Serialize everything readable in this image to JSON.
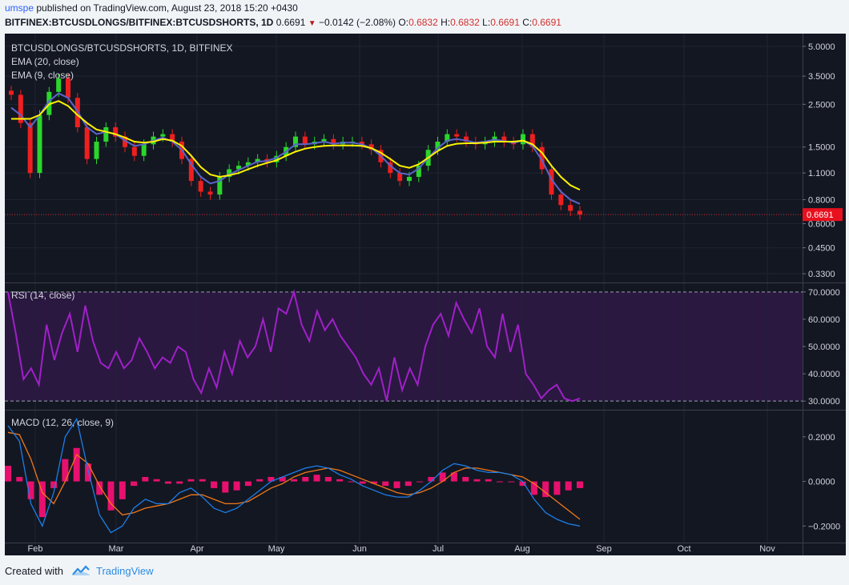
{
  "header": {
    "user": "umspe",
    "published": "published on TradingView.com, August 23, 2018 15:20 +0430",
    "symbol": "BITFINEX:BTCUSDLONGS/BITFINEX:BTCUSDSHORTS, 1D",
    "last": "0.6691",
    "change": "−0.0142 (−2.08%)",
    "open_label": "O:",
    "open": "0.6832",
    "high_label": "H:",
    "high": "0.6832",
    "low_label": "L:",
    "low": "0.6691",
    "close_label": "C:",
    "close": "0.6691"
  },
  "footer": {
    "created_with": "Created with",
    "brand": "TradingView"
  },
  "colors": {
    "background": "#131722",
    "up": "#2bd62b",
    "down": "#ef1f1f",
    "ema20": "#fff200",
    "ema9": "#5b64c8",
    "rsi": "#a020c8",
    "rsi_band": "#2a1840",
    "hist": "#e8106e",
    "macd": "#1c7ee8",
    "signal": "#f07818",
    "price_line": "#d32f2f"
  },
  "chart_data": [
    {
      "type": "candlestick",
      "title": "BTCUSDLONGS/BTCUSDSHORTS, 1D, BITFINEX",
      "legend": [
        "EMA (20, close)",
        "EMA (9, close)"
      ],
      "yscale": "log",
      "yticks": [
        "5.0000",
        "3.5000",
        "2.5000",
        "1.5000",
        "1.1000",
        "0.8000",
        "0.6000",
        "0.4500",
        "0.3300"
      ],
      "last_price_label": "0.6691",
      "x": [
        "2018-01-26",
        "2018-01-29",
        "2018-02-01",
        "2018-02-05",
        "2018-02-08",
        "2018-02-12",
        "2018-02-15",
        "2018-02-19",
        "2018-02-22",
        "2018-02-26",
        "2018-03-01",
        "2018-03-05",
        "2018-03-08",
        "2018-03-12",
        "2018-03-15",
        "2018-03-19",
        "2018-03-22",
        "2018-03-26",
        "2018-03-29",
        "2018-04-02",
        "2018-04-05",
        "2018-04-09",
        "2018-04-12",
        "2018-04-16",
        "2018-04-19",
        "2018-04-23",
        "2018-04-26",
        "2018-04-30",
        "2018-05-03",
        "2018-05-07",
        "2018-05-10",
        "2018-05-14",
        "2018-05-17",
        "2018-05-21",
        "2018-05-24",
        "2018-05-28",
        "2018-05-31",
        "2018-06-04",
        "2018-06-07",
        "2018-06-11",
        "2018-06-14",
        "2018-06-18",
        "2018-06-21",
        "2018-06-25",
        "2018-06-28",
        "2018-07-02",
        "2018-07-05",
        "2018-07-09",
        "2018-07-12",
        "2018-07-16",
        "2018-07-19",
        "2018-07-23",
        "2018-07-26",
        "2018-07-30",
        "2018-08-02",
        "2018-08-06",
        "2018-08-09",
        "2018-08-13",
        "2018-08-16",
        "2018-08-20",
        "2018-08-23"
      ],
      "close": [
        2.8,
        2.0,
        1.1,
        2.2,
        2.9,
        3.4,
        2.7,
        1.9,
        1.3,
        1.6,
        1.9,
        1.7,
        1.5,
        1.35,
        1.55,
        1.7,
        1.75,
        1.6,
        1.3,
        1.0,
        0.88,
        0.85,
        1.05,
        1.15,
        1.2,
        1.25,
        1.3,
        1.25,
        1.35,
        1.5,
        1.7,
        1.55,
        1.6,
        1.65,
        1.55,
        1.6,
        1.6,
        1.55,
        1.45,
        1.25,
        1.1,
        1.0,
        1.05,
        1.2,
        1.45,
        1.6,
        1.75,
        1.7,
        1.6,
        1.55,
        1.6,
        1.7,
        1.6,
        1.55,
        1.75,
        1.5,
        1.15,
        0.85,
        0.75,
        0.7,
        0.6691
      ],
      "ema20": [
        2.1,
        2.1,
        2.1,
        2.2,
        2.5,
        2.6,
        2.45,
        2.2,
        2.0,
        1.85,
        1.8,
        1.75,
        1.68,
        1.6,
        1.58,
        1.6,
        1.65,
        1.62,
        1.52,
        1.35,
        1.18,
        1.08,
        1.05,
        1.07,
        1.1,
        1.15,
        1.2,
        1.24,
        1.28,
        1.35,
        1.42,
        1.47,
        1.5,
        1.52,
        1.53,
        1.53,
        1.53,
        1.52,
        1.48,
        1.4,
        1.3,
        1.2,
        1.17,
        1.22,
        1.32,
        1.43,
        1.52,
        1.56,
        1.57,
        1.57,
        1.58,
        1.6,
        1.6,
        1.6,
        1.62,
        1.55,
        1.4,
        1.2,
        1.05,
        0.95,
        0.9
      ],
      "ema9": [
        2.4,
        2.2,
        1.9,
        2.2,
        2.6,
        2.85,
        2.7,
        2.3,
        1.9,
        1.75,
        1.8,
        1.75,
        1.62,
        1.52,
        1.55,
        1.62,
        1.68,
        1.6,
        1.45,
        1.22,
        1.05,
        0.97,
        1.0,
        1.08,
        1.14,
        1.2,
        1.26,
        1.27,
        1.32,
        1.42,
        1.55,
        1.55,
        1.57,
        1.6,
        1.56,
        1.58,
        1.58,
        1.55,
        1.48,
        1.35,
        1.2,
        1.1,
        1.08,
        1.16,
        1.32,
        1.48,
        1.62,
        1.65,
        1.62,
        1.58,
        1.6,
        1.64,
        1.61,
        1.58,
        1.62,
        1.52,
        1.28,
        1.02,
        0.88,
        0.8,
        0.76
      ]
    },
    {
      "type": "line",
      "title": "RSI (14, close)",
      "yticks": [
        "70.0000",
        "60.0000",
        "50.0000",
        "40.0000",
        "30.0000"
      ],
      "band": [
        30,
        70
      ],
      "values": [
        70,
        55,
        38,
        42,
        36,
        58,
        45,
        55,
        62,
        48,
        65,
        52,
        44,
        42,
        48,
        42,
        45,
        53,
        48,
        42,
        46,
        44,
        50,
        48,
        38,
        33,
        42,
        35,
        48,
        40,
        52,
        46,
        50,
        60,
        48,
        64,
        62,
        70,
        58,
        52,
        63,
        56,
        60,
        54,
        50,
        46,
        40,
        36,
        42,
        30,
        46,
        34,
        42,
        36,
        50,
        58,
        62,
        54,
        66,
        60,
        55,
        64,
        50,
        46,
        62,
        48,
        58,
        40,
        36,
        31,
        34,
        36,
        31,
        30,
        31
      ]
    },
    {
      "type": "histogram+line",
      "title": "MACD (12, 26, close, 9)",
      "yticks": [
        "0.2000",
        "0.0000",
        "−0.2000"
      ],
      "histogram": [
        0.07,
        0.02,
        -0.08,
        -0.16,
        -0.03,
        0.1,
        0.15,
        0.08,
        -0.06,
        -0.13,
        -0.08,
        -0.02,
        0.02,
        0.01,
        -0.01,
        -0.01,
        0.01,
        0.01,
        -0.03,
        -0.05,
        -0.04,
        -0.02,
        0.01,
        0.02,
        0.02,
        0.01,
        0.02,
        0.03,
        0.02,
        0.01,
        0.0,
        -0.01,
        -0.01,
        -0.02,
        -0.03,
        -0.02,
        0.0,
        0.02,
        0.04,
        0.04,
        0.02,
        0.01,
        0.01,
        0.0,
        0.0,
        -0.02,
        -0.06,
        -0.07,
        -0.06,
        -0.04,
        -0.03
      ],
      "macd": [
        0.25,
        0.18,
        -0.1,
        -0.2,
        -0.05,
        0.2,
        0.28,
        0.05,
        -0.15,
        -0.23,
        -0.2,
        -0.12,
        -0.08,
        -0.1,
        -0.1,
        -0.05,
        -0.03,
        -0.07,
        -0.12,
        -0.14,
        -0.12,
        -0.08,
        -0.04,
        0.0,
        0.02,
        0.04,
        0.06,
        0.07,
        0.06,
        0.03,
        0.01,
        -0.02,
        -0.04,
        -0.06,
        -0.07,
        -0.07,
        -0.04,
        0.0,
        0.05,
        0.08,
        0.07,
        0.05,
        0.04,
        0.04,
        0.03,
        0.0,
        -0.08,
        -0.14,
        -0.17,
        -0.19,
        -0.2
      ],
      "signal": [
        0.22,
        0.21,
        0.1,
        -0.05,
        -0.1,
        0.0,
        0.12,
        0.08,
        -0.02,
        -0.1,
        -0.15,
        -0.14,
        -0.12,
        -0.11,
        -0.1,
        -0.08,
        -0.06,
        -0.06,
        -0.08,
        -0.1,
        -0.1,
        -0.09,
        -0.06,
        -0.03,
        -0.01,
        0.02,
        0.04,
        0.05,
        0.06,
        0.05,
        0.03,
        0.01,
        -0.01,
        -0.03,
        -0.05,
        -0.06,
        -0.05,
        -0.03,
        0.0,
        0.04,
        0.06,
        0.06,
        0.05,
        0.04,
        0.03,
        0.02,
        -0.01,
        -0.05,
        -0.09,
        -0.13,
        -0.17
      ]
    }
  ],
  "x_axis": [
    "Feb",
    "Mar",
    "Apr",
    "May",
    "Jun",
    "Jul",
    "Aug",
    "Sep",
    "Oct",
    "Nov"
  ]
}
